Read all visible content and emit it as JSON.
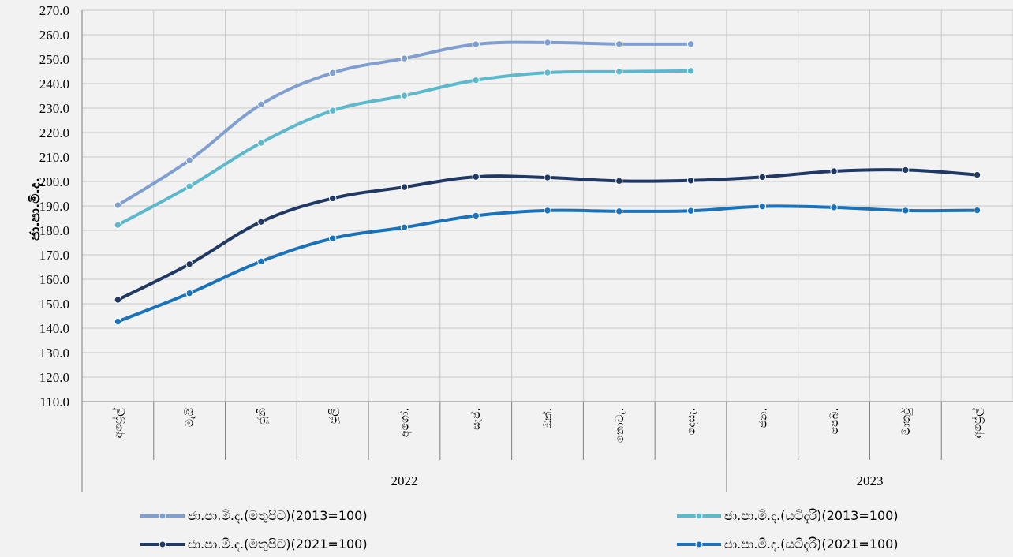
{
  "chart_data": {
    "type": "line",
    "ylabel": "ජා.පා.මි.ද.",
    "ylim": [
      110,
      270
    ],
    "yticks": [
      "110.0",
      "120.0",
      "130.0",
      "140.0",
      "150.0",
      "160.0",
      "170.0",
      "180.0",
      "190.0",
      "200.0",
      "210.0",
      "220.0",
      "230.0",
      "240.0",
      "250.0",
      "260.0",
      "270.0"
    ],
    "categories": [
      "අප්‍රේල්",
      "මැයි",
      "ජූනි",
      "ජූලි",
      "අගෝ.",
      "සැප්.",
      "ඔක්.",
      "නොවැ.",
      "දෙසැ.",
      "ජන.",
      "පෙබ.",
      "මාර්තු",
      "අප්‍රේල්"
    ],
    "years": [
      {
        "label": "2022",
        "span": 9
      },
      {
        "label": "2023",
        "span": 4
      }
    ],
    "grid": true,
    "legend_position": "bottom",
    "series": [
      {
        "name": "ජා.පා.මි.ද.(මතුපිට)(2013=100)",
        "color": "#7f9fd3",
        "values": [
          190.3,
          208.7,
          231.5,
          244.4,
          250.3,
          256.1,
          256.8,
          256.2,
          256.2,
          null,
          null,
          null,
          null
        ]
      },
      {
        "name": "ජා.පා.මි.ද.(යටිදැරි)(2013=100)",
        "color": "#5cb8cc",
        "values": [
          182.2,
          198.0,
          215.8,
          229.0,
          235.1,
          241.4,
          244.5,
          244.9,
          245.2,
          null,
          null,
          null,
          null
        ]
      },
      {
        "name": "ජා.පා.මි.ද.(මතුපිට)(2021=100)",
        "color": "#1f3864",
        "values": [
          151.6,
          166.2,
          183.5,
          193.1,
          197.7,
          201.9,
          201.6,
          200.2,
          200.4,
          201.8,
          204.2,
          204.7,
          202.7
        ]
      },
      {
        "name": "ජා.පා.මි.ද.(යටිදැරි)(2021=100)",
        "color": "#1a72bb",
        "values": [
          142.7,
          154.3,
          167.3,
          176.7,
          181.2,
          186.0,
          188.1,
          187.8,
          188.0,
          189.8,
          189.4,
          188.1,
          188.2
        ]
      }
    ]
  }
}
